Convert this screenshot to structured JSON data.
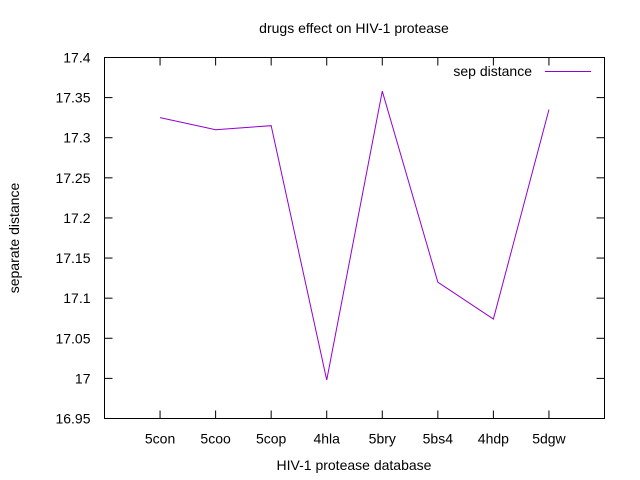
{
  "chart_data": {
    "type": "line",
    "title": "drugs effect on HIV-1 protease",
    "xlabel": "HIV-1 protease database",
    "ylabel": "separate distance",
    "categories": [
      "5con",
      "5coo",
      "5cop",
      "4hla",
      "5bry",
      "5bs4",
      "4hdp",
      "5dgw"
    ],
    "series": [
      {
        "name": "sep distance",
        "color": "#9400d3",
        "values": [
          17.325,
          17.31,
          17.315,
          16.998,
          17.358,
          17.12,
          17.074,
          17.335
        ]
      }
    ],
    "ylim": [
      16.95,
      17.4
    ],
    "yticks": [
      "16.95",
      "17",
      "17.05",
      "17.1",
      "17.15",
      "17.2",
      "17.25",
      "17.3",
      "17.35",
      "17.4"
    ],
    "grid": false,
    "legend_position": "top-right"
  }
}
